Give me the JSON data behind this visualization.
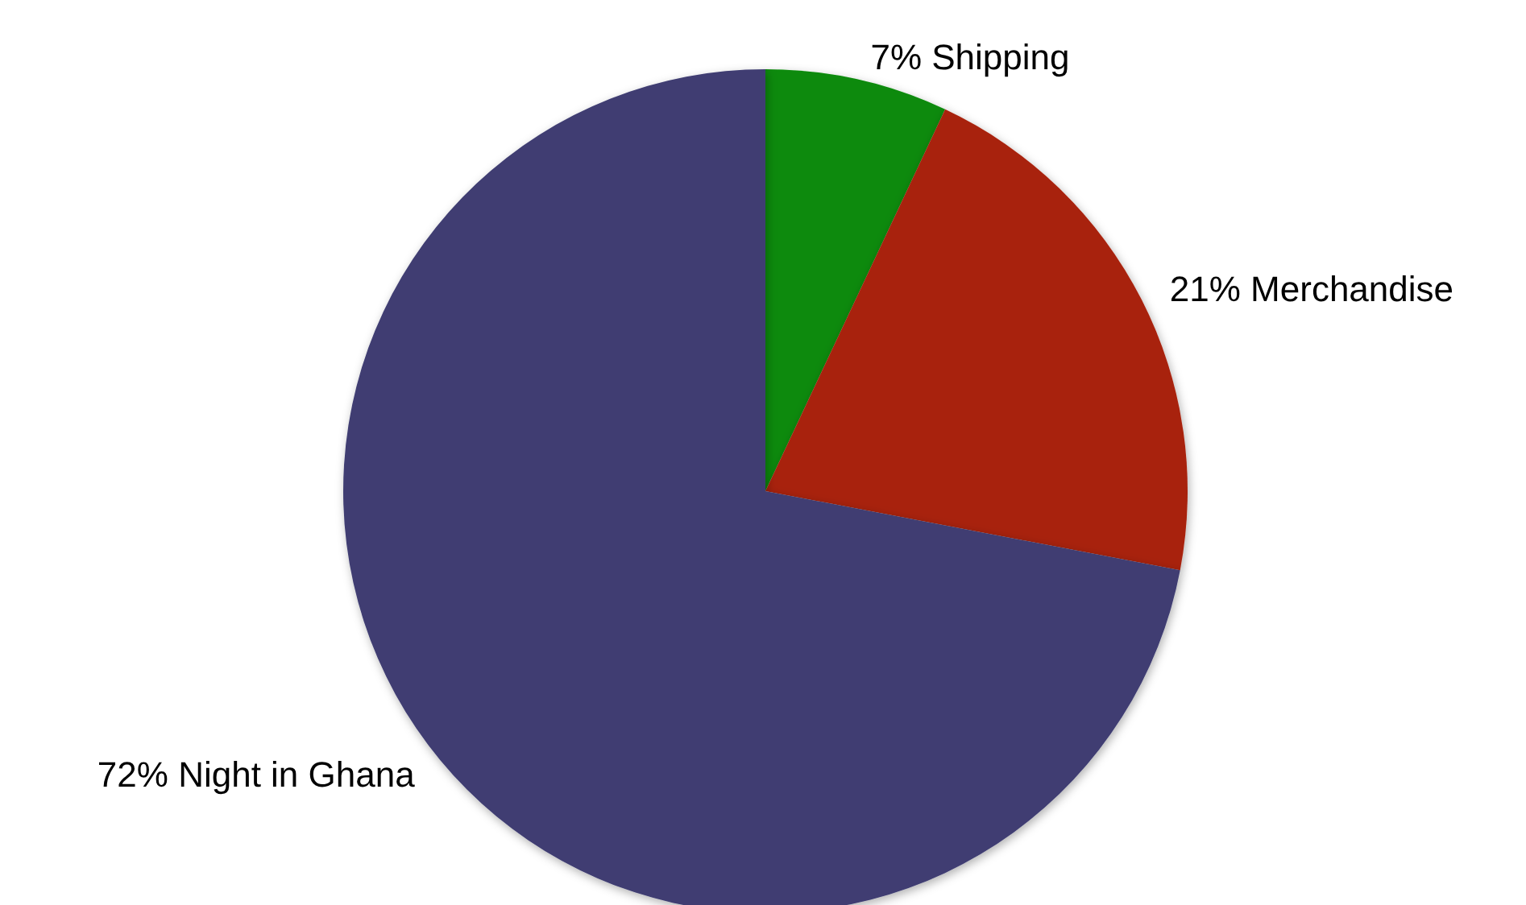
{
  "chart_data": {
    "type": "pie",
    "categories": [
      "Shipping",
      "Merchandise",
      "Night in Ghana"
    ],
    "values": [
      7,
      21,
      72
    ],
    "colors": [
      "#0b8a0b",
      "#a8240e",
      "#3f3e72"
    ],
    "value_labels": [
      "7%",
      "21%",
      "72%"
    ],
    "legend": false
  }
}
